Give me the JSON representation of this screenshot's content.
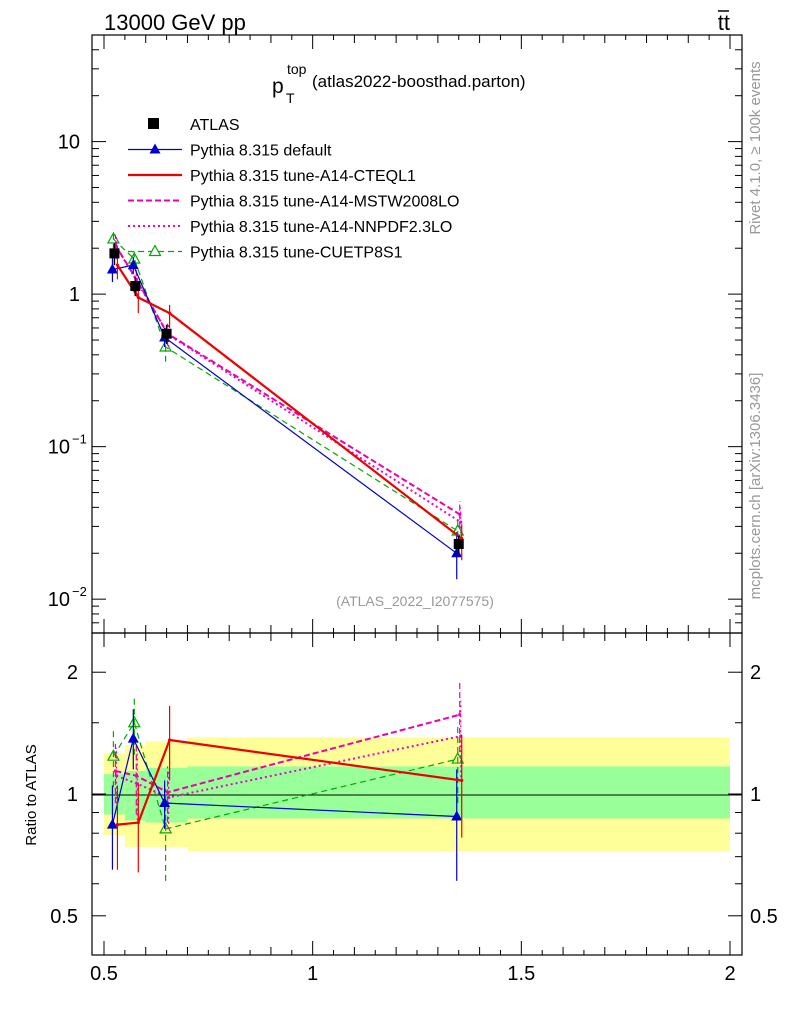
{
  "header": {
    "left": "13000 GeV pp",
    "right_base": "tt",
    "right_bar": "t"
  },
  "main": {
    "title_p": "p",
    "title_sup": "top",
    "title_sub": "T",
    "title_rest": " (atlas2022-boosthad.parton)",
    "watermark": "(ATLAS_2022_I2077575)"
  },
  "side": {
    "rivet": "Rivet 4.1.0, ≥ 100k events",
    "mcplots": "mcplots.cern.ch [arXiv:1306.3436]"
  },
  "ratio": {
    "ylabel": "Ratio to ATLAS"
  },
  "colors": {
    "data": "#000000",
    "default": "#0000cc",
    "cteql1": "#ee0000",
    "mstw": "#ee00aa",
    "nnpdf": "#ee00cc",
    "cuetp": "#00aa00",
    "band_inner": "#99ff99",
    "band_outer": "#ffff99"
  },
  "chart_data": [
    {
      "type": "line",
      "yscale": "log",
      "xlim": [
        0.5,
        2.0
      ],
      "ylim": [
        0.006,
        50
      ],
      "yticks": [
        {
          "v": 10,
          "base": "10",
          "exp": ""
        },
        {
          "v": 1,
          "base": "1",
          "exp": ""
        },
        {
          "v": 0.1,
          "base": "10",
          "exp": "−1"
        },
        {
          "v": 0.01,
          "base": "10",
          "exp": "−2"
        }
      ],
      "x": [
        0.525,
        0.575,
        0.65,
        1.35
      ],
      "bins": [
        [
          0.5,
          0.55
        ],
        [
          0.55,
          0.6
        ],
        [
          0.6,
          0.7
        ],
        [
          0.7,
          2.0
        ]
      ],
      "series": [
        {
          "key": "data",
          "name": "ATLAS",
          "values": [
            1.85,
            1.13,
            0.55,
            0.023
          ],
          "lo": [
            1.55,
            0.97,
            0.47,
            0.02
          ],
          "hi": [
            2.15,
            1.29,
            0.63,
            0.026
          ]
        },
        {
          "key": "default",
          "name": "Pythia 8.315 default",
          "values": [
            1.45,
            1.55,
            0.52,
            0.02
          ],
          "lo": [
            1.2,
            1.35,
            0.45,
            0.0135
          ],
          "hi": [
            1.75,
            1.75,
            0.6,
            0.0275
          ]
        },
        {
          "key": "cteql1",
          "name": "Pythia 8.315 tune-A14-CTEQL1",
          "values": [
            1.55,
            0.95,
            0.75,
            0.025
          ],
          "lo": [
            1.25,
            0.75,
            0.6,
            0.018
          ],
          "hi": [
            1.85,
            1.15,
            0.85,
            0.031
          ]
        },
        {
          "key": "mstw",
          "name": "Pythia 8.315 tune-A14-MSTW2008LO",
          "values": [
            2.1,
            1.25,
            0.55,
            0.036
          ],
          "lo": [
            1.75,
            1.0,
            0.46,
            0.029
          ],
          "hi": [
            2.45,
            1.5,
            0.64,
            0.044
          ]
        },
        {
          "key": "nnpdf",
          "name": "Pythia 8.315 tune-A14-NNPDF2.3LO",
          "values": [
            2.05,
            1.2,
            0.54,
            0.032
          ],
          "lo": [
            1.7,
            0.98,
            0.45,
            0.025
          ],
          "hi": [
            2.4,
            1.42,
            0.63,
            0.04
          ]
        },
        {
          "key": "cuetp",
          "name": "Pythia 8.315 tune-CUETP8S1",
          "values": [
            2.3,
            1.7,
            0.45,
            0.028
          ],
          "lo": [
            1.95,
            1.5,
            0.36,
            0.022
          ],
          "hi": [
            2.65,
            1.9,
            0.54,
            0.034
          ]
        }
      ]
    },
    {
      "type": "line",
      "ylabel": "Ratio to ATLAS",
      "yscale": "log",
      "xlim": [
        0.5,
        2.0
      ],
      "ylim": [
        0.4,
        2.5
      ],
      "xticks": [
        {
          "v": 0.5,
          "label": "0.5"
        },
        {
          "v": 1,
          "label": "1"
        },
        {
          "v": 1.5,
          "label": "1.5"
        },
        {
          "v": 2,
          "label": "2"
        }
      ],
      "yticks": [
        {
          "v": 2,
          "label": "2"
        },
        {
          "v": 1,
          "label": "1"
        },
        {
          "v": 0.5,
          "label": "0.5"
        }
      ],
      "band_inner": [
        [
          0.89,
          1.12
        ],
        [
          0.86,
          1.14
        ],
        [
          0.85,
          1.16
        ],
        [
          0.87,
          1.17
        ]
      ],
      "band_outer": [
        [
          0.79,
          1.26
        ],
        [
          0.74,
          1.32
        ],
        [
          0.74,
          1.35
        ],
        [
          0.72,
          1.38
        ]
      ],
      "series": [
        {
          "key": "default",
          "values": [
            0.84,
            1.37,
            0.95,
            0.88
          ],
          "lo": [
            0.65,
            1.15,
            0.82,
            0.61
          ],
          "hi": [
            1.05,
            1.62,
            1.08,
            1.15
          ]
        },
        {
          "key": "cteql1",
          "values": [
            0.84,
            0.85,
            1.36,
            1.08
          ],
          "lo": [
            0.65,
            0.64,
            1.08,
            0.78
          ],
          "hi": [
            1.05,
            1.06,
            1.65,
            1.4
          ]
        },
        {
          "key": "mstw",
          "values": [
            1.14,
            1.11,
            1.01,
            1.57
          ],
          "lo": [
            0.95,
            0.89,
            0.85,
            1.27
          ],
          "hi": [
            1.33,
            1.33,
            1.17,
            1.9
          ]
        },
        {
          "key": "nnpdf",
          "values": [
            1.11,
            1.06,
            0.98,
            1.39
          ],
          "lo": [
            0.92,
            0.86,
            0.82,
            1.1
          ],
          "hi": [
            1.3,
            1.26,
            1.14,
            1.7
          ]
        },
        {
          "key": "cuetp",
          "values": [
            1.24,
            1.5,
            0.82,
            1.22
          ],
          "lo": [
            1.04,
            1.25,
            0.61,
            0.95
          ],
          "hi": [
            1.44,
            1.75,
            1.03,
            1.5
          ]
        }
      ]
    }
  ]
}
